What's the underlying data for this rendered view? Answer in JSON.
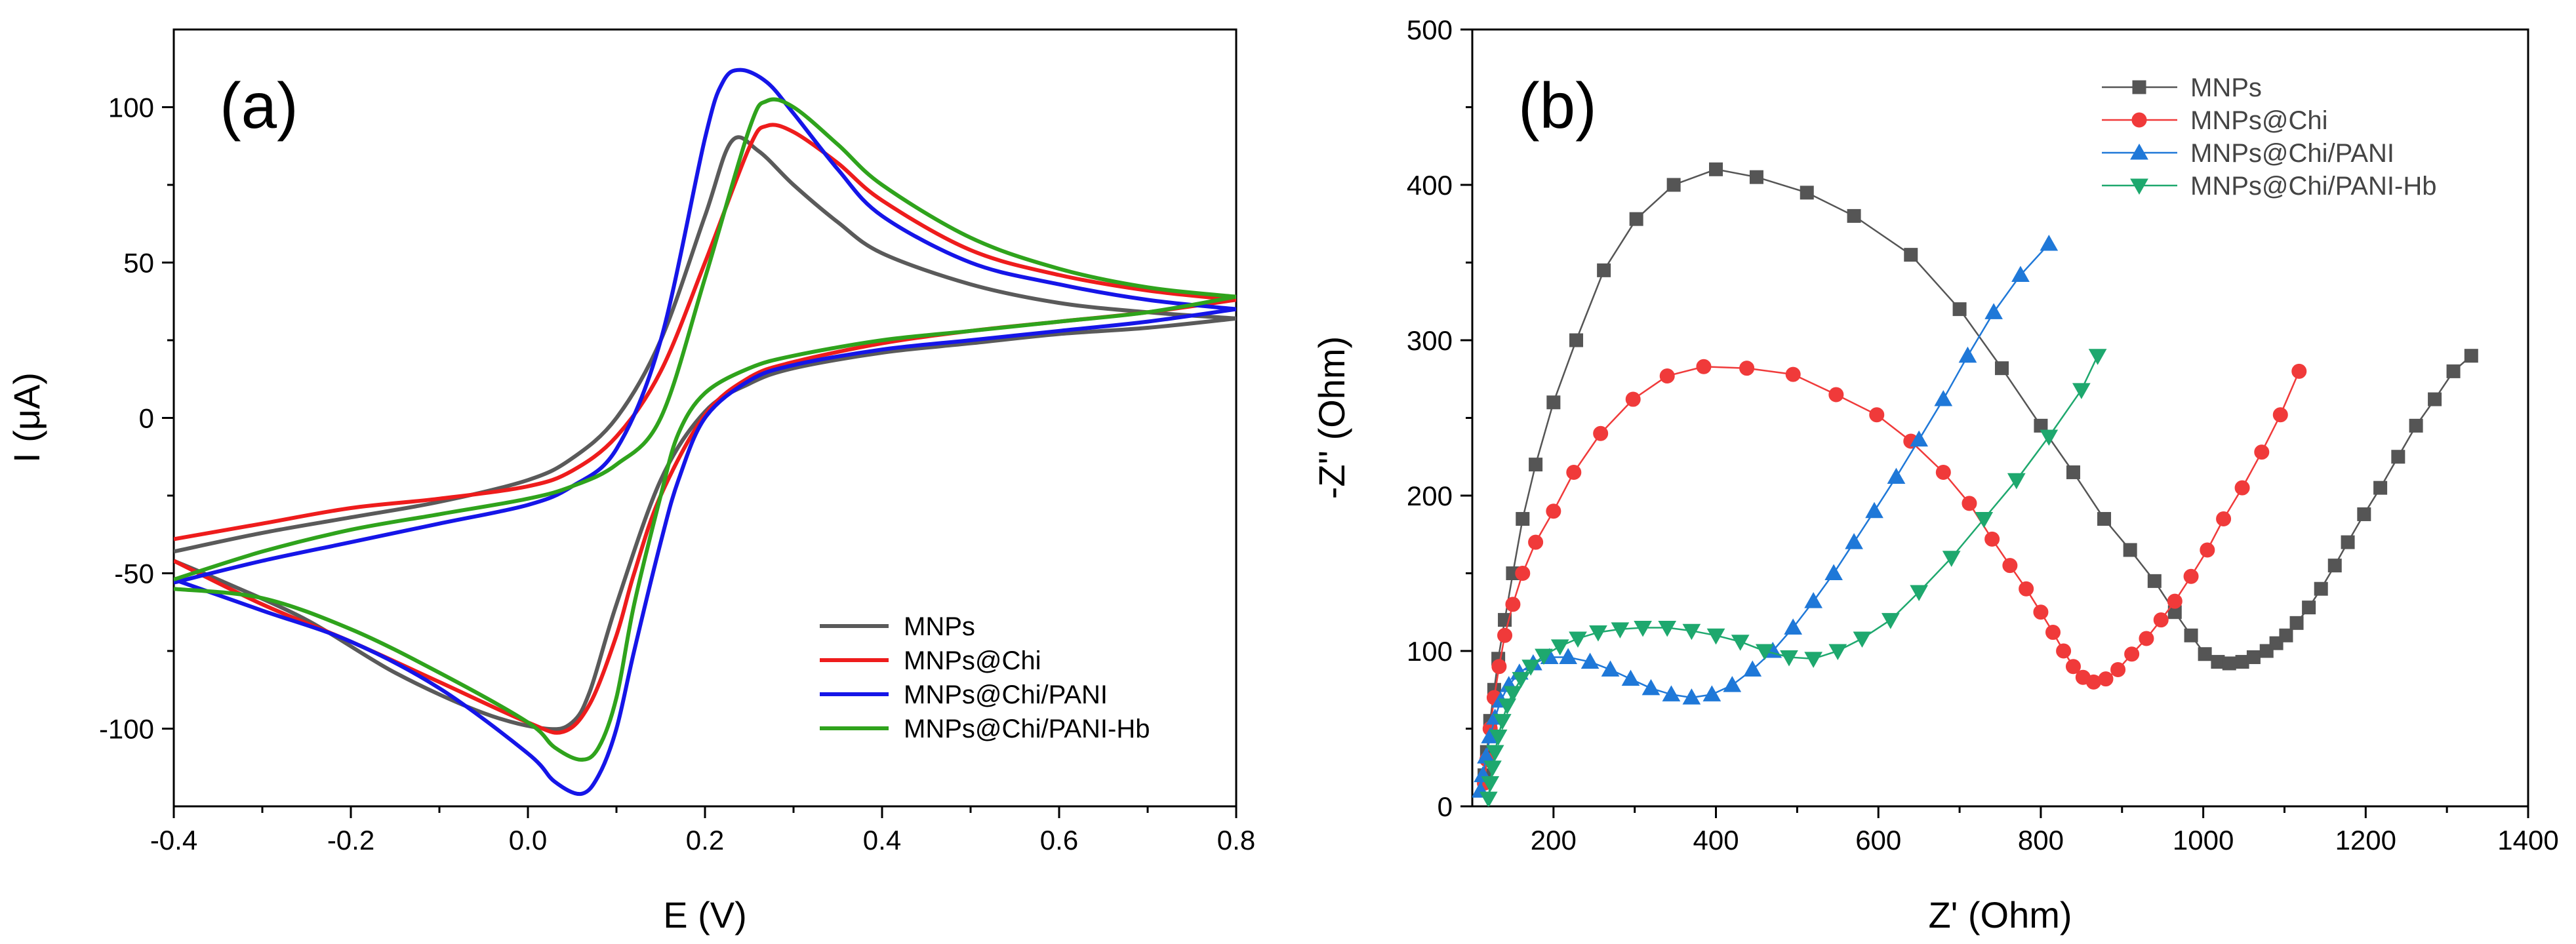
{
  "chart_data": [
    {
      "type": "line",
      "panel_label": "(a)",
      "xlabel": "E (V)",
      "ylabel": "I (μA)",
      "xlim": [
        -0.4,
        0.8
      ],
      "ylim": [
        -125,
        125
      ],
      "xticks": [
        -0.4,
        -0.2,
        0.0,
        0.2,
        0.4,
        0.6,
        0.8
      ],
      "xtick_labels": [
        "-0.4",
        "-0.2",
        "0.0",
        "0.2",
        "0.4",
        "0.6",
        "0.8"
      ],
      "yticks": [
        -100,
        -50,
        0,
        50,
        100
      ],
      "ytick_labels": [
        "-100",
        "-50",
        "0",
        "50",
        "100"
      ],
      "legend_position": "bottom-right",
      "series": [
        {
          "name": "MNPs",
          "color": "#5a5a5a",
          "forward": {
            "x": [
              -0.4,
              -0.3,
              -0.2,
              -0.1,
              0.0,
              0.05,
              0.1,
              0.15,
              0.2,
              0.23,
              0.26,
              0.3,
              0.35,
              0.4,
              0.5,
              0.6,
              0.7,
              0.8
            ],
            "y": [
              -43,
              -37,
              -32,
              -27,
              -20,
              -13,
              0,
              25,
              65,
              89,
              86,
              75,
              63,
              53,
              43,
              37,
              34,
              32
            ]
          },
          "reverse": {
            "x": [
              0.8,
              0.7,
              0.6,
              0.5,
              0.4,
              0.3,
              0.25,
              0.2,
              0.15,
              0.1,
              0.07,
              0.05,
              0.02,
              -0.05,
              -0.15,
              -0.25,
              -0.35,
              -0.4
            ],
            "y": [
              32,
              29,
              27,
              24,
              21,
              16,
              11,
              2,
              -20,
              -60,
              -88,
              -98,
              -100,
              -95,
              -82,
              -65,
              -52,
              -46
            ]
          }
        },
        {
          "name": "MNPs@Chi",
          "color": "#ee1c1c",
          "forward": {
            "x": [
              -0.4,
              -0.3,
              -0.2,
              -0.1,
              0.0,
              0.05,
              0.1,
              0.15,
              0.2,
              0.25,
              0.27,
              0.3,
              0.35,
              0.4,
              0.5,
              0.6,
              0.7,
              0.8
            ],
            "y": [
              -39,
              -34,
              -29,
              -26,
              -22,
              -17,
              -6,
              15,
              50,
              87,
              94,
              92,
              82,
              70,
              54,
              46,
              41,
              38
            ]
          },
          "reverse": {
            "x": [
              0.8,
              0.7,
              0.6,
              0.5,
              0.4,
              0.3,
              0.25,
              0.2,
              0.15,
              0.12,
              0.1,
              0.07,
              0.04,
              0.0,
              -0.1,
              -0.2,
              -0.3,
              -0.4
            ],
            "y": [
              38,
              34,
              31,
              28,
              24,
              18,
              13,
              1,
              -25,
              -50,
              -70,
              -92,
              -101,
              -98,
              -85,
              -72,
              -60,
              -46
            ]
          }
        },
        {
          "name": "MNPs@Chi/PANI",
          "color": "#1515e8",
          "forward": {
            "x": [
              -0.4,
              -0.3,
              -0.2,
              -0.1,
              0.0,
              0.05,
              0.1,
              0.15,
              0.2,
              0.22,
              0.24,
              0.27,
              0.3,
              0.35,
              0.4,
              0.5,
              0.6,
              0.7,
              0.8
            ],
            "y": [
              -53,
              -46,
              -40,
              -34,
              -28,
              -22,
              -10,
              25,
              90,
              108,
              112,
              108,
              98,
              80,
              65,
              50,
              43,
              38,
              35
            ]
          },
          "reverse": {
            "x": [
              0.8,
              0.7,
              0.6,
              0.5,
              0.4,
              0.3,
              0.25,
              0.2,
              0.17,
              0.15,
              0.12,
              0.1,
              0.08,
              0.06,
              0.03,
              0.0,
              -0.1,
              -0.2,
              -0.3,
              -0.4
            ],
            "y": [
              35,
              31,
              28,
              25,
              22,
              17,
              12,
              0,
              -20,
              -40,
              -75,
              -100,
              -115,
              -121,
              -117,
              -108,
              -87,
              -72,
              -62,
              -52
            ]
          }
        },
        {
          "name": "MNPs@Chi/PANI-Hb",
          "color": "#2fa31c",
          "forward": {
            "x": [
              -0.4,
              -0.3,
              -0.2,
              -0.1,
              0.0,
              0.05,
              0.1,
              0.15,
              0.2,
              0.25,
              0.27,
              0.3,
              0.35,
              0.4,
              0.5,
              0.6,
              0.7,
              0.8
            ],
            "y": [
              -52,
              -43,
              -36,
              -31,
              -26,
              -22,
              -15,
              0,
              45,
              93,
              102,
              100,
              88,
              75,
              58,
              48,
              42,
              39
            ]
          },
          "reverse": {
            "x": [
              0.8,
              0.7,
              0.6,
              0.5,
              0.4,
              0.3,
              0.25,
              0.2,
              0.17,
              0.15,
              0.12,
              0.1,
              0.08,
              0.06,
              0.03,
              0.0,
              -0.1,
              -0.2,
              -0.3,
              -0.4
            ],
            "y": [
              39,
              34,
              31,
              28,
              25,
              20,
              16,
              8,
              -5,
              -25,
              -60,
              -90,
              -106,
              -110,
              -106,
              -98,
              -82,
              -68,
              -58,
              -55
            ]
          }
        }
      ]
    },
    {
      "type": "scatter",
      "panel_label": "(b)",
      "xlabel": "Z' (Ohm)",
      "ylabel": "-Z'' (Ohm)",
      "xlim": [
        100,
        1400
      ],
      "ylim": [
        0,
        500
      ],
      "xticks": [
        200,
        400,
        600,
        800,
        1000,
        1200,
        1400
      ],
      "xtick_labels": [
        "200",
        "400",
        "600",
        "800",
        "1000",
        "1200",
        "1400"
      ],
      "yticks": [
        0,
        100,
        200,
        300,
        400,
        500
      ],
      "ytick_labels": [
        "0",
        "100",
        "200",
        "300",
        "400",
        "500"
      ],
      "legend_position": "top-center",
      "series": [
        {
          "name": "MNPs",
          "color": "#555555",
          "marker": "square",
          "x": [
            115,
            118,
            122,
            127,
            132,
            140,
            150,
            162,
            178,
            200,
            228,
            262,
            302,
            348,
            400,
            450,
            512,
            570,
            640,
            700,
            752,
            800,
            840,
            878,
            910,
            940,
            965,
            985,
            1002,
            1018,
            1032,
            1048,
            1062,
            1078,
            1090,
            1102,
            1115,
            1130,
            1145,
            1162,
            1178,
            1198,
            1218,
            1240,
            1262,
            1285,
            1308,
            1330
          ],
          "y": [
            20,
            35,
            55,
            75,
            95,
            120,
            150,
            185,
            220,
            260,
            300,
            345,
            378,
            400,
            410,
            405,
            395,
            380,
            355,
            320,
            282,
            245,
            215,
            185,
            165,
            145,
            125,
            110,
            98,
            93,
            92,
            93,
            96,
            100,
            105,
            110,
            118,
            128,
            140,
            155,
            170,
            188,
            205,
            225,
            245,
            262,
            280,
            290
          ]
        },
        {
          "name": "MNPs@Chi",
          "color": "#f03a3a",
          "marker": "circle",
          "x": [
            115,
            118,
            122,
            127,
            133,
            140,
            150,
            162,
            178,
            200,
            225,
            258,
            298,
            340,
            385,
            438,
            495,
            548,
            598,
            640,
            680,
            712,
            740,
            762,
            782,
            800,
            815,
            828,
            840,
            852,
            865,
            880,
            895,
            912,
            930,
            948,
            965,
            985,
            1005,
            1025,
            1048,
            1072,
            1095,
            1118
          ],
          "y": [
            15,
            30,
            50,
            70,
            90,
            110,
            130,
            150,
            170,
            190,
            215,
            240,
            262,
            277,
            283,
            282,
            278,
            265,
            252,
            235,
            215,
            195,
            172,
            155,
            140,
            125,
            112,
            100,
            90,
            83,
            80,
            82,
            88,
            98,
            108,
            120,
            132,
            148,
            165,
            185,
            205,
            228,
            252,
            280
          ]
        },
        {
          "name": "MNPs@Chi/PANI",
          "color": "#1f78d8",
          "marker": "triangle-up",
          "x": [
            110,
            113,
            117,
            122,
            128,
            135,
            145,
            158,
            175,
            195,
            218,
            245,
            270,
            295,
            320,
            345,
            370,
            395,
            420,
            445,
            470,
            495,
            520,
            545,
            570,
            595,
            622,
            650,
            680,
            710,
            742,
            775,
            810
          ],
          "y": [
            10,
            20,
            32,
            45,
            57,
            68,
            78,
            86,
            92,
            96,
            96,
            93,
            88,
            82,
            76,
            72,
            70,
            72,
            78,
            88,
            100,
            115,
            132,
            150,
            170,
            190,
            212,
            236,
            262,
            290,
            318,
            342,
            362
          ]
        },
        {
          "name": "MNPs@Chi/PANI-Hb",
          "color": "#1ea86e",
          "marker": "triangle-down",
          "x": [
            120,
            122,
            125,
            128,
            132,
            137,
            143,
            150,
            160,
            172,
            188,
            208,
            230,
            255,
            282,
            310,
            340,
            370,
            400,
            430,
            460,
            490,
            520,
            550,
            580,
            615,
            650,
            690,
            730,
            770,
            810,
            850,
            870
          ],
          "y": [
            5,
            15,
            25,
            35,
            45,
            55,
            65,
            73,
            82,
            90,
            97,
            103,
            108,
            112,
            114,
            115,
            115,
            113,
            110,
            106,
            100,
            96,
            95,
            100,
            108,
            120,
            138,
            160,
            185,
            210,
            238,
            268,
            290
          ]
        }
      ]
    }
  ]
}
